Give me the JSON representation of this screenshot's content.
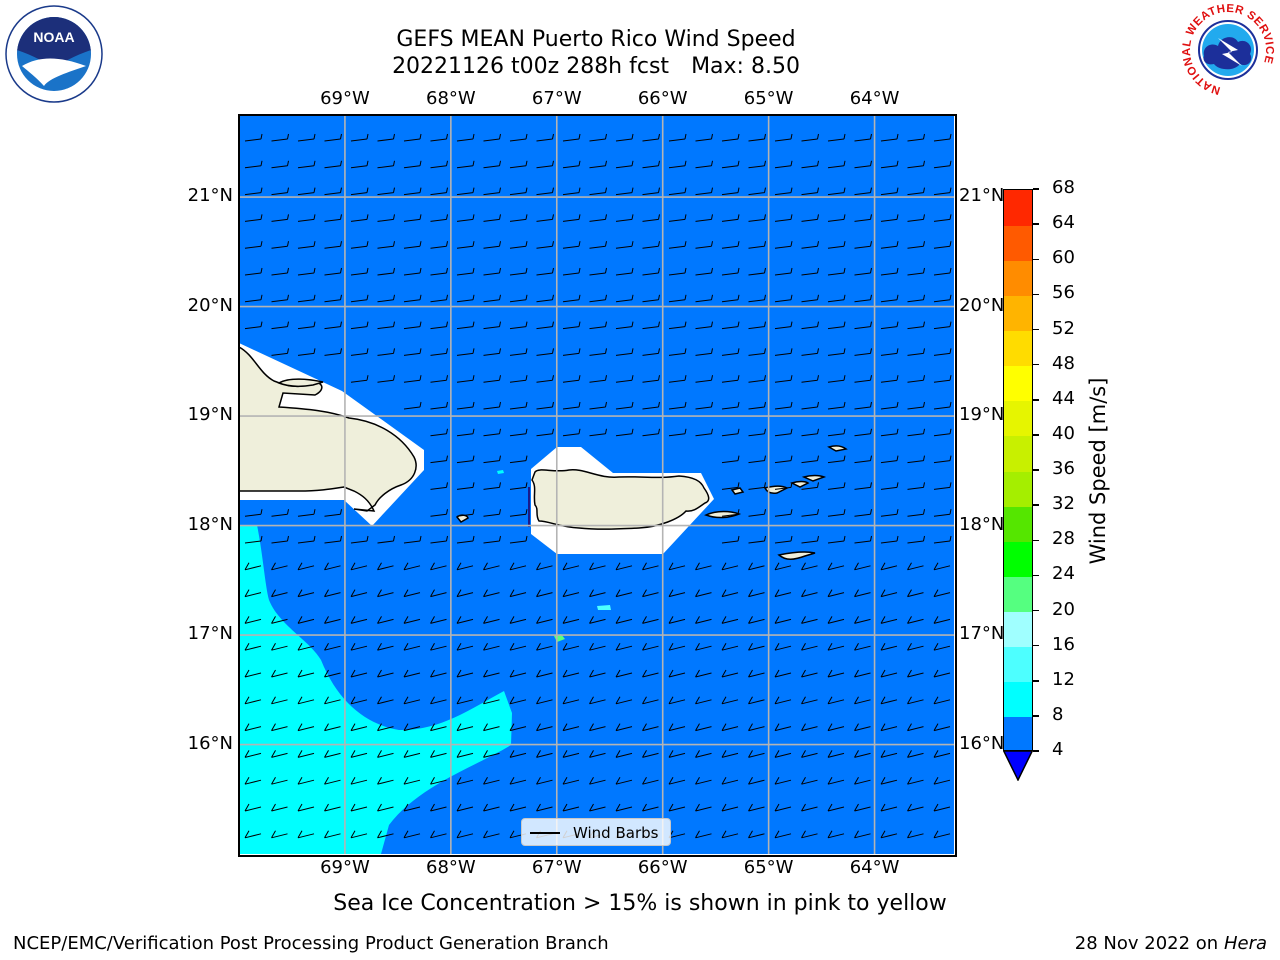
{
  "title": {
    "line1": "GEFS MEAN Puerto Rico Wind Speed",
    "run": "20221126 t00z 288h fcst",
    "max": "Max: 8.50"
  },
  "map": {
    "lon_labels": [
      "69°W",
      "68°W",
      "67°W",
      "66°W",
      "65°W",
      "64°W"
    ],
    "lat_labels": [
      "21°N",
      "20°N",
      "19°N",
      "18°N",
      "17°N",
      "16°N"
    ],
    "lon_range": [
      -70,
      -63.25
    ],
    "lat_range": [
      15.0,
      21.75
    ],
    "ocean_color": "#0078ff",
    "high_wind_color": "#00ffff",
    "land_color": "#efefdb",
    "gridlines": true
  },
  "legend": {
    "label": "Wind Barbs"
  },
  "colorbar": {
    "title": "Wind Speed [m/s]",
    "levels": [
      "4",
      "8",
      "12",
      "16",
      "20",
      "24",
      "28",
      "32",
      "36",
      "40",
      "44",
      "48",
      "52",
      "56",
      "60",
      "64",
      "68"
    ],
    "colors": [
      "#0078ff",
      "#00ffff",
      "#4dffff",
      "#a0ffff",
      "#55ff80",
      "#00ff00",
      "#55e600",
      "#a5ee00",
      "#c8f000",
      "#e6f500",
      "#ffff00",
      "#ffdc00",
      "#ffb400",
      "#ff8c00",
      "#ff5a00",
      "#ff2800"
    ],
    "under_color": "#0000ff"
  },
  "caption": "Sea Ice Concentration > 15% is shown in pink to yellow",
  "footer": {
    "left": "NCEP/EMC/Verification Post Processing Product Generation Branch",
    "date": "28 Nov 2022 on",
    "machine": "Hera"
  },
  "logos": {
    "noaa": "NOAA",
    "nws_ring": "NATIONAL WEATHER SERVICE"
  }
}
